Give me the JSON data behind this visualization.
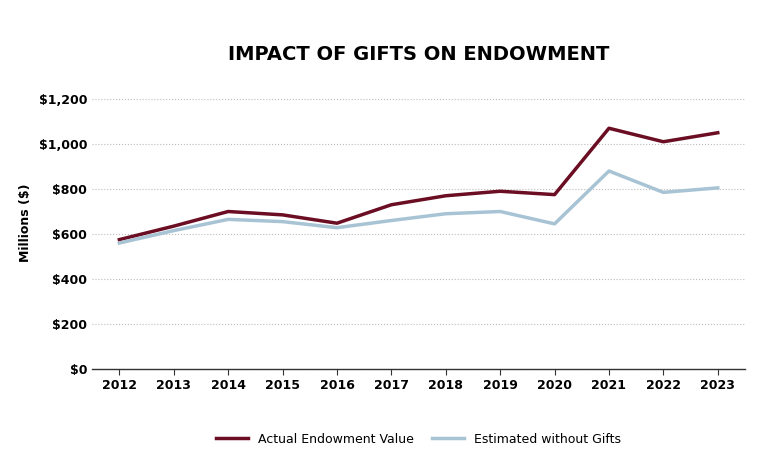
{
  "title": "IMPACT OF GIFTS ON ENDOWMENT",
  "years": [
    2012,
    2013,
    2014,
    2015,
    2016,
    2017,
    2018,
    2019,
    2020,
    2021,
    2022,
    2023
  ],
  "actual_values": [
    575,
    635,
    700,
    685,
    648,
    730,
    770,
    790,
    775,
    1070,
    1010,
    1050
  ],
  "estimated_values": [
    560,
    615,
    665,
    655,
    628,
    660,
    690,
    700,
    645,
    880,
    785,
    805
  ],
  "actual_color": "#6B0E23",
  "estimated_color": "#A8C4D4",
  "ylabel": "Millions ($)",
  "ylim": [
    0,
    1300
  ],
  "yticks": [
    0,
    200,
    400,
    600,
    800,
    1000,
    1200
  ],
  "legend_actual": "Actual Endowment Value",
  "legend_estimated": "Estimated without Gifts",
  "background_color": "#FFFFFF",
  "grid_color": "#BBBBBB",
  "line_width": 2.5,
  "title_fontsize": 14,
  "tick_fontsize": 9,
  "ylabel_fontsize": 9
}
